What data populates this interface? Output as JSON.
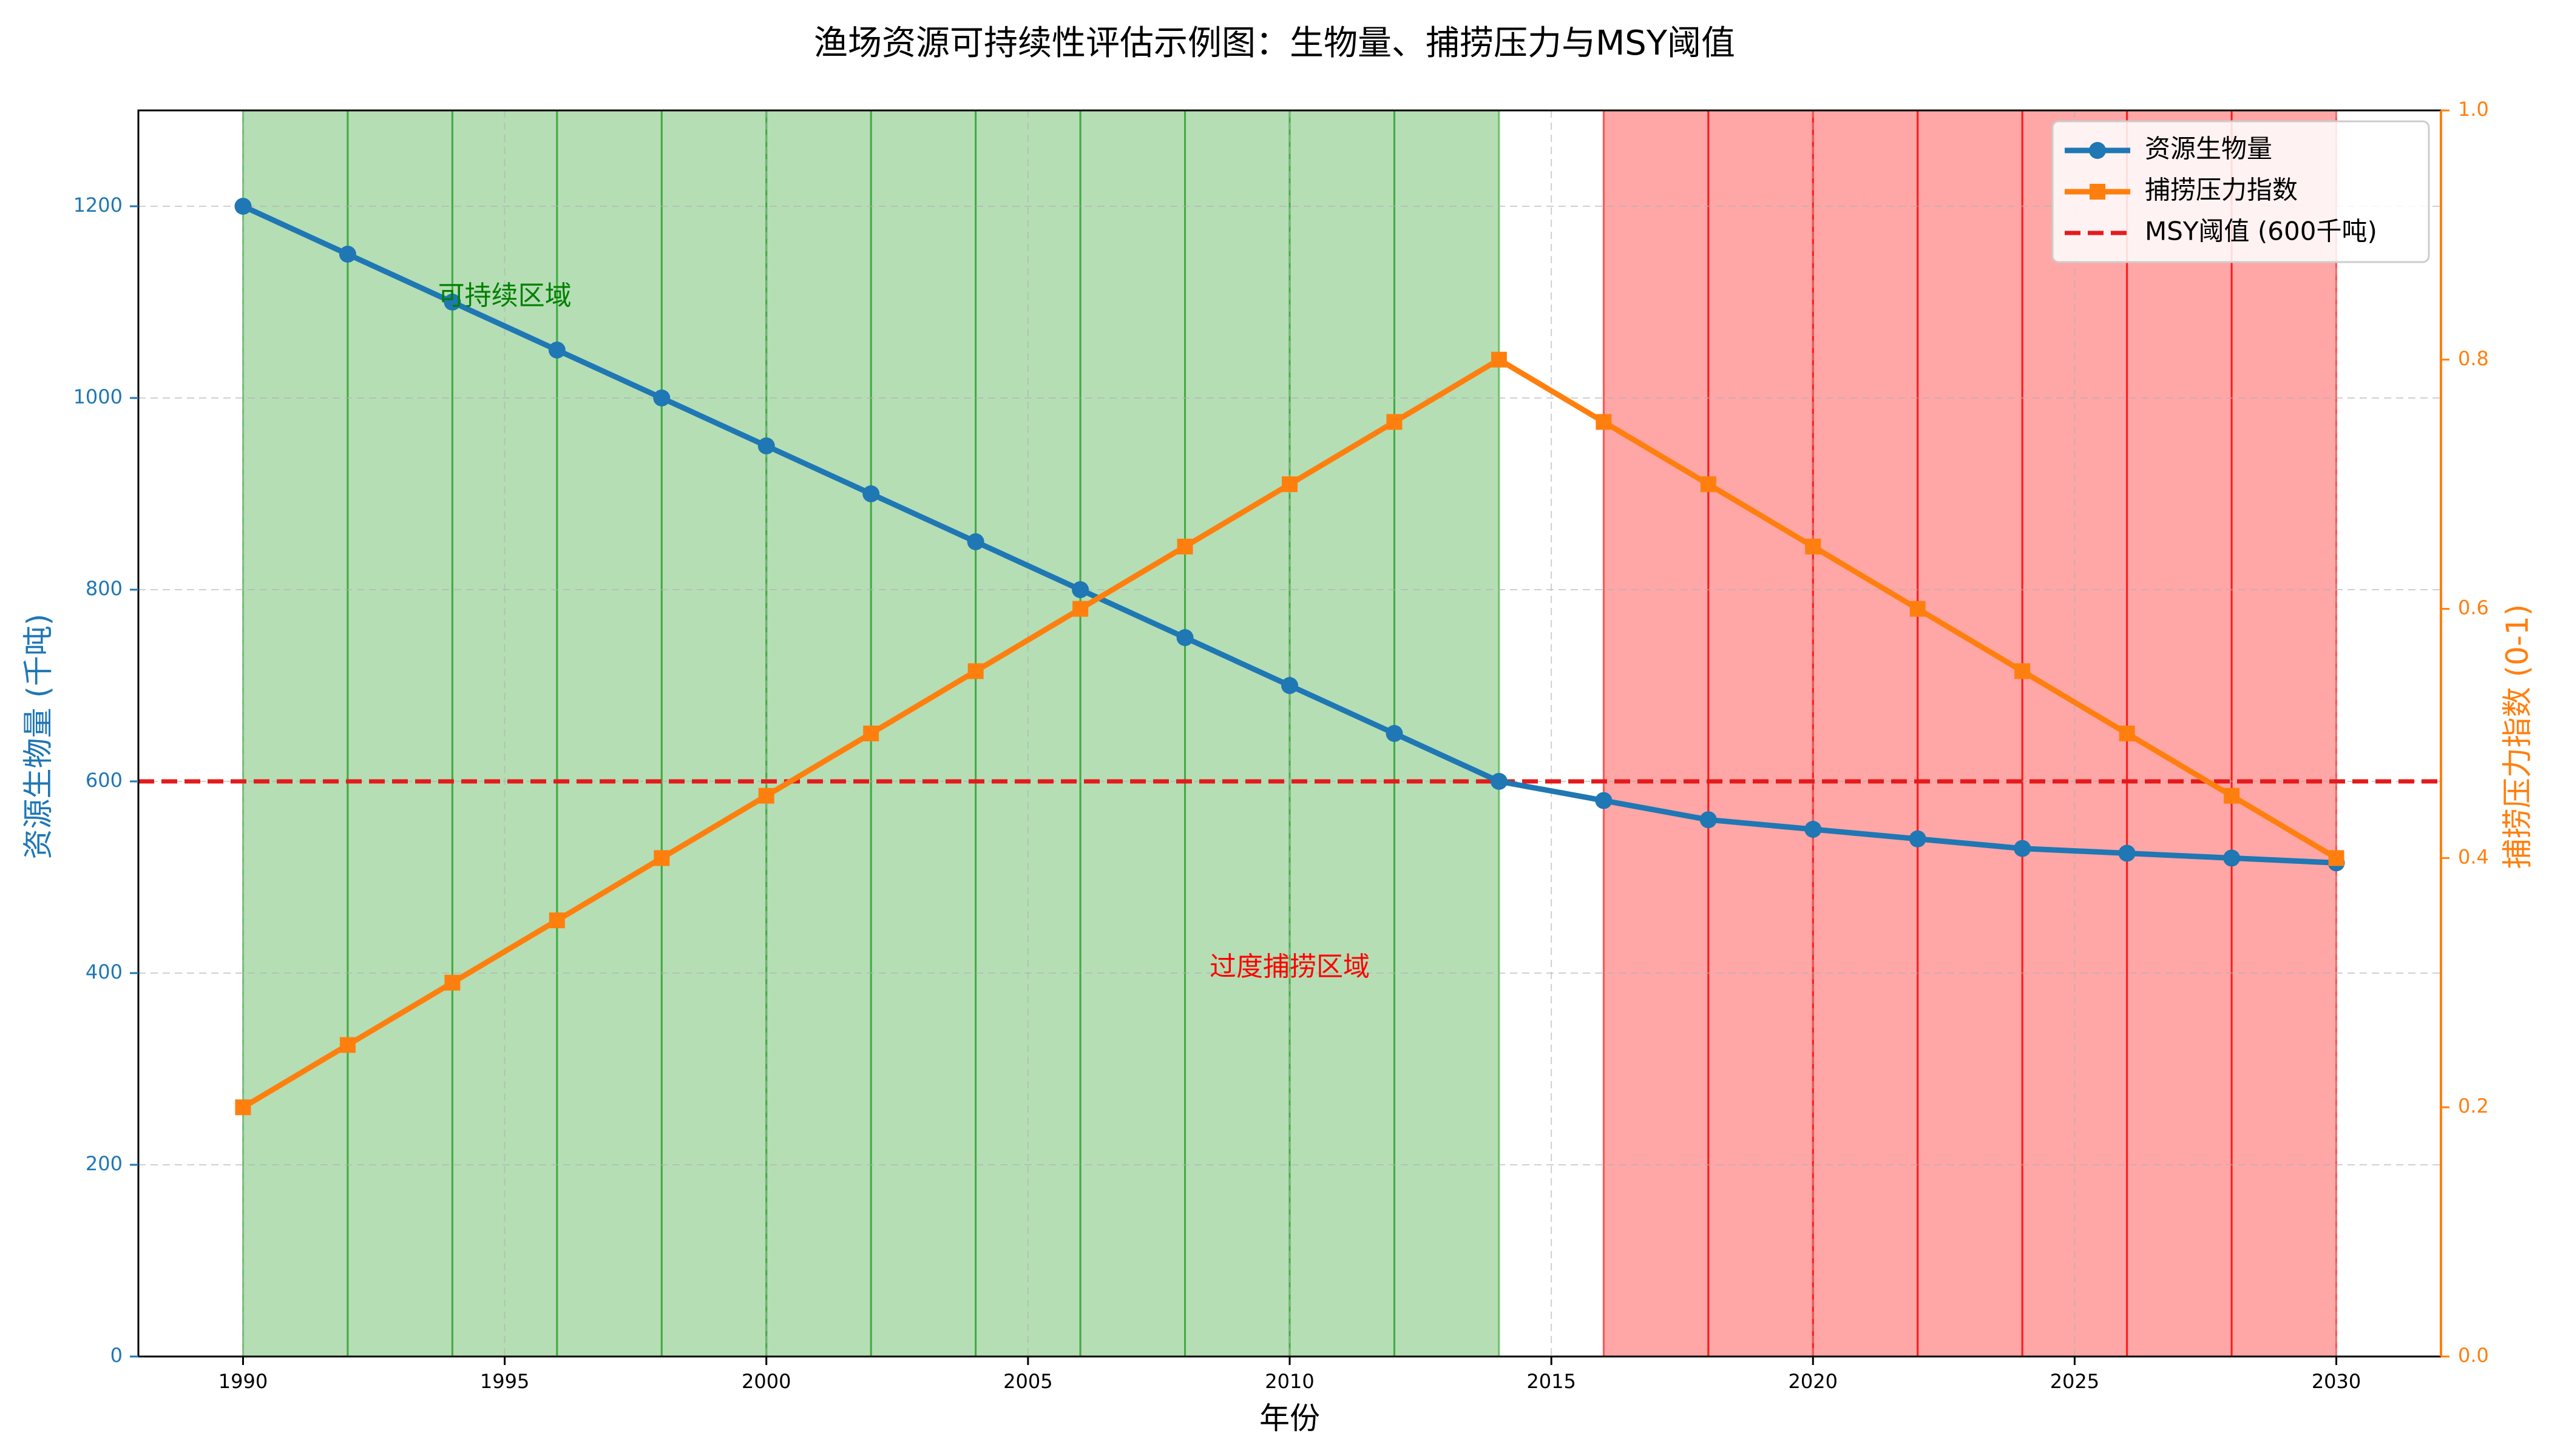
{
  "chart_data": {
    "type": "line",
    "title": "渔场资源可持续性评估示例图：生物量、捕捞压力与MSY阈值",
    "xlabel": "年份",
    "ylabel": "资源生物量 (千吨)",
    "ylabel_right": "捕捞压力指数 (0-1)",
    "xlim": [
      1988,
      2032
    ],
    "ylim": [
      0,
      1300
    ],
    "ylim_right": [
      0,
      1.0
    ],
    "x_ticks": [
      1990,
      1995,
      2000,
      2005,
      2010,
      2015,
      2020,
      2025,
      2030
    ],
    "y_ticks": [
      0,
      200,
      400,
      600,
      800,
      1000,
      1200
    ],
    "y_ticks_right": [
      0.0,
      0.2,
      0.4,
      0.6,
      0.8,
      1.0
    ],
    "x_tick_labels": [
      "1990",
      "1995",
      "2000",
      "2005",
      "2010",
      "2015",
      "2020",
      "2025",
      "2030"
    ],
    "y_tick_labels": [
      "0",
      "200",
      "400",
      "600",
      "800",
      "1000",
      "1200"
    ],
    "y_tick_labels_right": [
      "0.0",
      "0.2",
      "0.4",
      "0.6",
      "0.8",
      "1.0"
    ],
    "grid": true,
    "legend_position": "top-right",
    "series": [
      {
        "name": "资源生物量",
        "axis": "left",
        "color": "#1f77b4",
        "marker": "circle",
        "x": [
          1990,
          1992,
          1994,
          1996,
          1998,
          2000,
          2002,
          2004,
          2006,
          2008,
          2010,
          2012,
          2014,
          2016,
          2018,
          2020,
          2022,
          2024,
          2026,
          2028,
          2030
        ],
        "values": [
          1200,
          1150,
          1100,
          1050,
          1000,
          950,
          900,
          850,
          800,
          750,
          700,
          650,
          600,
          580,
          560,
          550,
          540,
          530,
          525,
          520,
          515
        ]
      },
      {
        "name": "捕捞压力指数",
        "axis": "right",
        "color": "#ff7f0e",
        "marker": "square",
        "x": [
          1990,
          1992,
          1994,
          1996,
          1998,
          2000,
          2002,
          2004,
          2006,
          2008,
          2010,
          2012,
          2014,
          2016,
          2018,
          2020,
          2022,
          2024,
          2026,
          2028,
          2030
        ],
        "values": [
          0.2,
          0.25,
          0.3,
          0.35,
          0.4,
          0.45,
          0.5,
          0.55,
          0.6,
          0.65,
          0.7,
          0.75,
          0.8,
          0.75,
          0.7,
          0.65,
          0.6,
          0.55,
          0.5,
          0.45,
          0.4
        ]
      }
    ],
    "reference_line": {
      "name": "MSY阈值 (600千吨)",
      "value": 600,
      "axis": "left",
      "color": "#e41a1c",
      "style": "dashed"
    },
    "regions": [
      {
        "label": "可持续区域",
        "color": "#2ca02c",
        "label_color": "#008000",
        "label_x": 1995,
        "label_y": 1105,
        "bands": [
          [
            1990,
            1992
          ],
          [
            1992,
            1994
          ],
          [
            1994,
            1996
          ],
          [
            1996,
            1998
          ],
          [
            1998,
            2000
          ],
          [
            2000,
            2002
          ],
          [
            2002,
            2004
          ],
          [
            2004,
            2006
          ],
          [
            2006,
            2008
          ],
          [
            2008,
            2010
          ],
          [
            2010,
            2012
          ],
          [
            2012,
            2014
          ]
        ]
      },
      {
        "label": "过度捕捞区域",
        "color": "#ff0000",
        "label_color": "#ff0000",
        "label_x": 2010,
        "label_y": 405,
        "bands": [
          [
            2016,
            2018
          ],
          [
            2018,
            2020
          ],
          [
            2020,
            2022
          ],
          [
            2022,
            2024
          ],
          [
            2024,
            2026
          ],
          [
            2026,
            2028
          ],
          [
            2028,
            2030
          ]
        ]
      }
    ],
    "colors": {
      "left_axis": "#1f77b4",
      "right_axis": "#ff7f0e"
    }
  }
}
